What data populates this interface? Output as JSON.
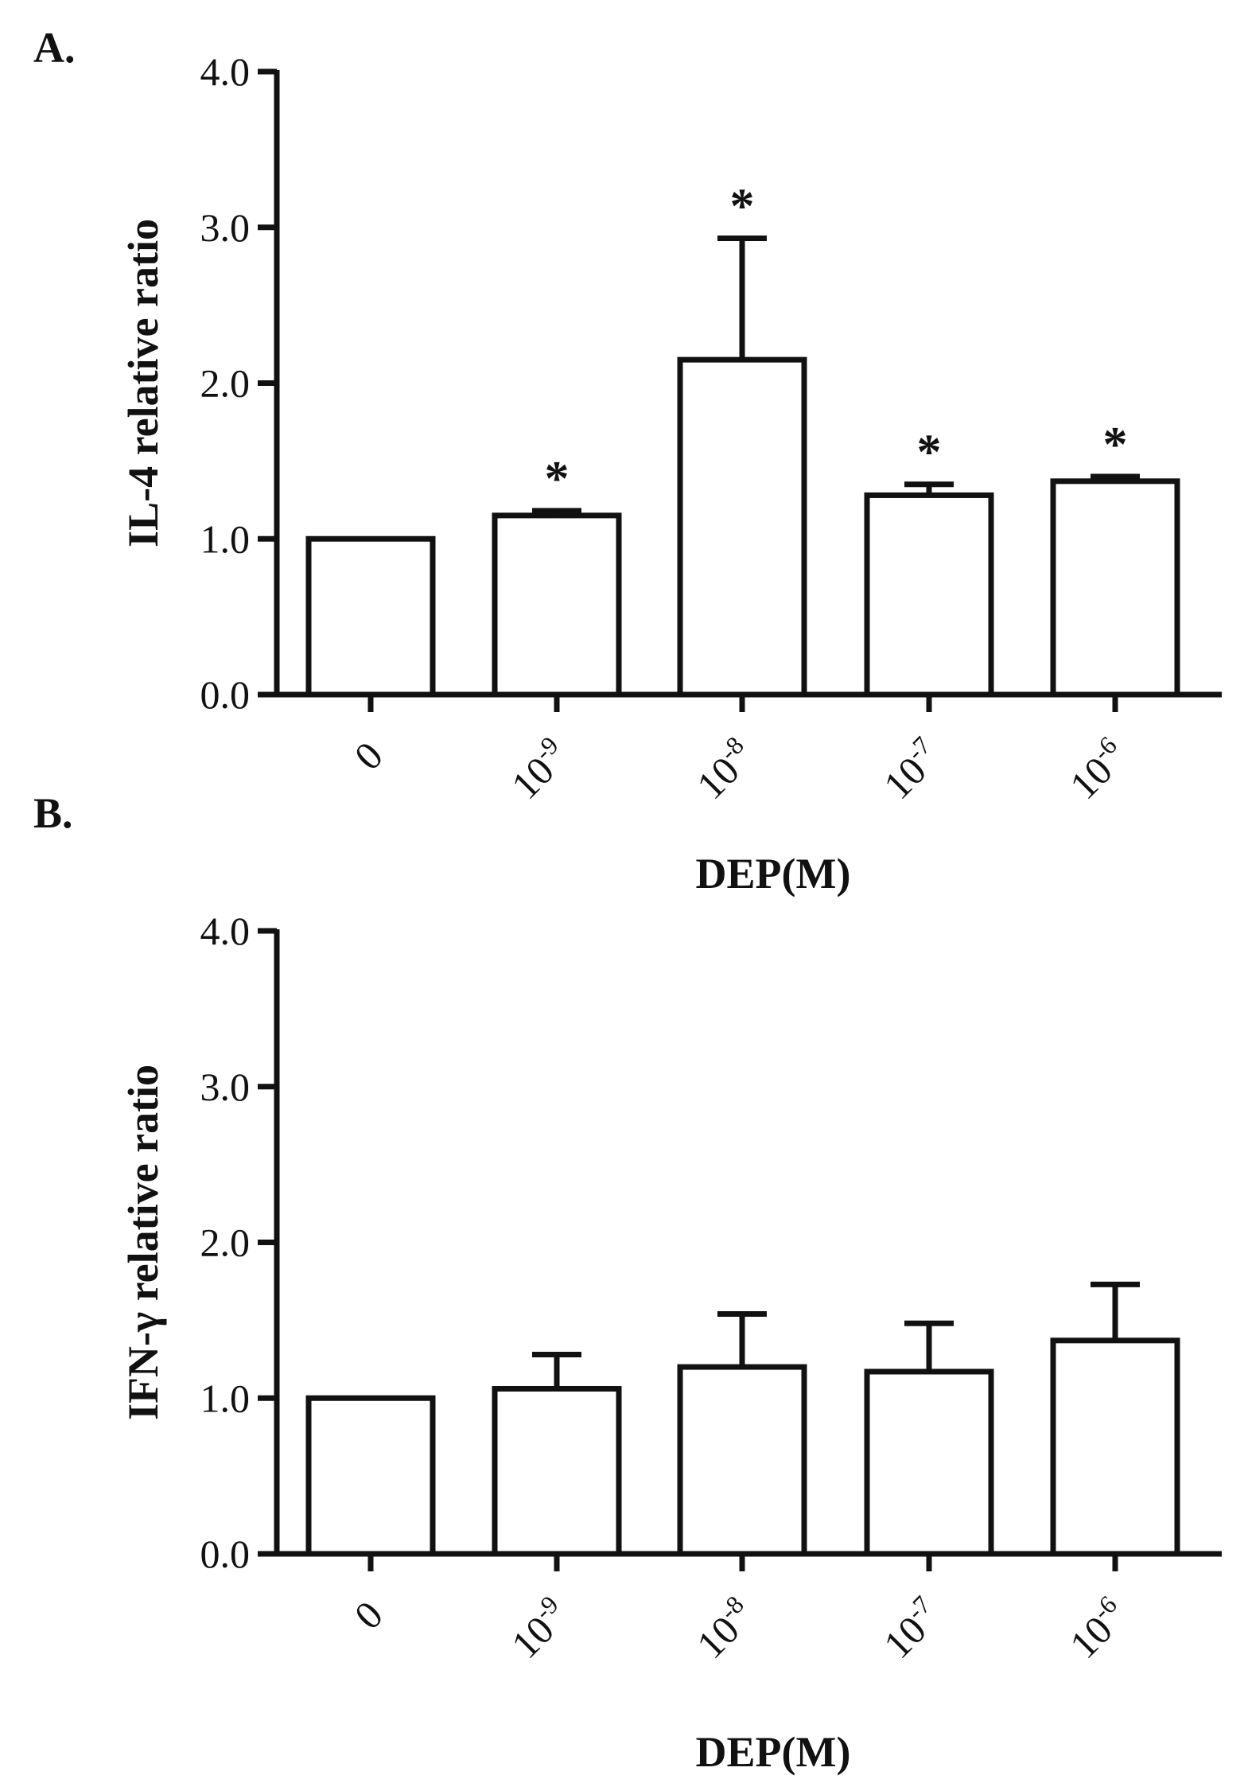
{
  "chart_data": [
    {
      "type": "bar",
      "panel_label": "A.",
      "title": "",
      "ylabel": "IL-4 relative ratio",
      "xlabel": "DEP(M)",
      "ylim": [
        0,
        4
      ],
      "yticks": [
        "0.0",
        "1.0",
        "2.0",
        "3.0",
        "4.0"
      ],
      "categories": [
        {
          "base": "0",
          "exp": ""
        },
        {
          "base": "10",
          "exp": "-9"
        },
        {
          "base": "10",
          "exp": "-8"
        },
        {
          "base": "10",
          "exp": "-7"
        },
        {
          "base": "10",
          "exp": "-6"
        }
      ],
      "values": [
        1.0,
        1.15,
        2.15,
        1.28,
        1.37
      ],
      "errors": [
        0.0,
        0.03,
        0.78,
        0.07,
        0.03
      ],
      "significance": [
        "",
        "*",
        "*",
        "*",
        "*"
      ]
    },
    {
      "type": "bar",
      "panel_label": "B.",
      "title": "",
      "ylabel": "IFN-γ relative ratio",
      "xlabel": "DEP(M)",
      "ylim": [
        0,
        4
      ],
      "yticks": [
        "0.0",
        "1.0",
        "2.0",
        "3.0",
        "4.0"
      ],
      "categories": [
        {
          "base": "0",
          "exp": ""
        },
        {
          "base": "10",
          "exp": "-9"
        },
        {
          "base": "10",
          "exp": "-8"
        },
        {
          "base": "10",
          "exp": "-7"
        },
        {
          "base": "10",
          "exp": "-6"
        }
      ],
      "values": [
        1.0,
        1.06,
        1.2,
        1.17,
        1.37
      ],
      "errors": [
        0.0,
        0.22,
        0.34,
        0.31,
        0.36
      ],
      "significance": [
        "",
        "",
        "",
        "",
        ""
      ]
    }
  ]
}
